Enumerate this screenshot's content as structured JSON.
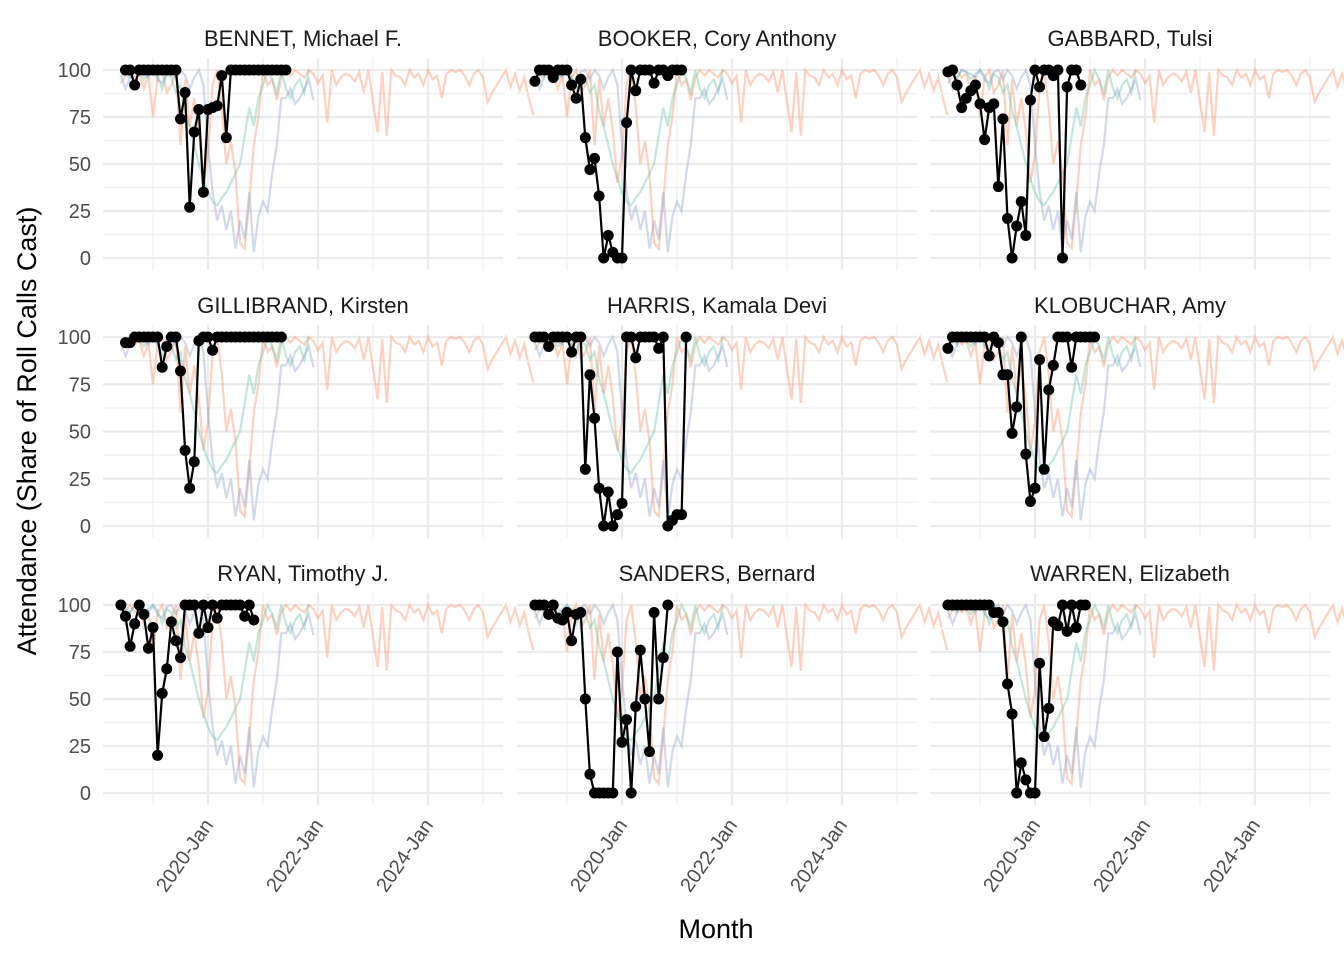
{
  "chart_data": {
    "type": "line",
    "layout": "facet-grid 3x3",
    "xlabel": "Month",
    "ylabel": "Attendance (Share of Roll Calls Cast)",
    "ylim": [
      0,
      100
    ],
    "yticks": [
      0,
      25,
      50,
      75,
      100
    ],
    "y_tick_labels": [
      "0",
      "25",
      "50",
      "75",
      "100"
    ],
    "x_range": [
      "2018-03",
      "2025-06"
    ],
    "x_tick_labels": [
      "2020-Jan",
      "2022-Jan",
      "2024-Jan"
    ],
    "x_tick_values": [
      "2020-01",
      "2022-01",
      "2024-01"
    ],
    "grid": true,
    "background_series": [
      {
        "name": "other-1",
        "color": "#FC8D62",
        "start": "2018-06",
        "values": [
          93,
          97,
          100,
          96,
          98,
          90,
          97,
          75,
          96,
          100,
          88,
          92,
          100,
          60,
          95,
          70,
          85,
          68,
          40,
          55,
          92,
          100,
          80,
          50,
          62,
          45,
          8,
          5,
          30,
          60,
          75,
          100,
          92,
          95,
          84,
          96,
          100,
          97,
          100,
          98,
          96,
          100,
          98,
          93,
          97,
          72,
          100,
          92,
          96,
          98,
          97,
          94,
          99,
          88,
          100,
          83,
          67,
          99,
          65,
          100,
          97,
          96,
          92,
          100,
          96,
          98,
          92,
          100,
          95,
          97,
          85,
          98,
          100,
          99,
          100,
          97,
          92,
          98,
          100,
          96,
          83,
          88,
          92,
          96,
          100,
          91,
          98,
          89,
          96,
          85,
          76
        ]
      },
      {
        "name": "other-2",
        "color": "#66C2A5",
        "start": "2018-06",
        "values": [
          97,
          98,
          96,
          100,
          99,
          95,
          98,
          100,
          97,
          90,
          98,
          96,
          88,
          92,
          78,
          70,
          60,
          50,
          42,
          35,
          30,
          28,
          32,
          35,
          40,
          45,
          50,
          65,
          80,
          70,
          85,
          92,
          100,
          95,
          88,
          100,
          90,
          85,
          92,
          95,
          88,
          100
        ]
      },
      {
        "name": "other-3",
        "color": "#8DA0CB",
        "start": "2018-06",
        "values": [
          97,
          90,
          96,
          100,
          99,
          98,
          96,
          100,
          95,
          93,
          99,
          100,
          95,
          100,
          97,
          90,
          96,
          100,
          92,
          60,
          35,
          20,
          28,
          15,
          25,
          5,
          20,
          10,
          35,
          3,
          22,
          30,
          25,
          45,
          60,
          85,
          85,
          90,
          82,
          85,
          90,
          95,
          84
        ]
      }
    ],
    "panels": [
      {
        "title": "BENNET, Michael F.",
        "start": "2018-07",
        "values": [
          100,
          100,
          92,
          100,
          100,
          100,
          100,
          100,
          100,
          100,
          100,
          100,
          74,
          88,
          27,
          67,
          79,
          35,
          79,
          80,
          81,
          97,
          64,
          100,
          100,
          100,
          100,
          100,
          100,
          100,
          100,
          100,
          100,
          100,
          100,
          100
        ]
      },
      {
        "title": "BOOKER, Cory Anthony",
        "start": "2018-06",
        "values": [
          94,
          100,
          100,
          100,
          96,
          100,
          100,
          100,
          92,
          85,
          95,
          64,
          47,
          53,
          33,
          0,
          12,
          3,
          0,
          0,
          72,
          100,
          89,
          100,
          100,
          100,
          93,
          100,
          100,
          97,
          100,
          100,
          100
        ]
      },
      {
        "title": "GABBARD, Tulsi",
        "start": "2018-06",
        "values": [
          99,
          100,
          92,
          80,
          85,
          89,
          92,
          82,
          63,
          80,
          82,
          38,
          74,
          21,
          0,
          17,
          30,
          12,
          84,
          100,
          91,
          100,
          100,
          97,
          100,
          0,
          91,
          100,
          100,
          92
        ]
      },
      {
        "title": "GILLIBRAND, Kirsten",
        "start": "2018-07",
        "values": [
          97,
          97,
          100,
          100,
          100,
          100,
          100,
          100,
          84,
          95,
          100,
          100,
          82,
          40,
          20,
          34,
          98,
          100,
          100,
          93,
          100,
          100,
          100,
          100,
          100,
          100,
          100,
          100,
          100,
          100,
          100,
          100,
          100,
          100,
          100
        ]
      },
      {
        "title": "HARRIS, Kamala Devi",
        "start": "2018-06",
        "values": [
          100,
          100,
          100,
          95,
          100,
          100,
          100,
          100,
          92,
          100,
          100,
          30,
          80,
          57,
          20,
          0,
          18,
          0,
          6,
          12,
          100,
          100,
          89,
          100,
          100,
          100,
          100,
          94,
          100,
          0,
          3,
          6,
          6,
          100
        ]
      },
      {
        "title": "KLOBUCHAR, Amy",
        "start": "2018-06",
        "values": [
          94,
          100,
          100,
          100,
          100,
          100,
          100,
          100,
          100,
          90,
          100,
          97,
          80,
          80,
          49,
          63,
          100,
          38,
          13,
          20,
          88,
          30,
          72,
          85,
          100,
          100,
          100,
          84,
          100,
          100,
          100,
          100,
          100
        ]
      },
      {
        "title": "RYAN, Timothy J.",
        "start": "2018-06",
        "values": [
          100,
          94,
          78,
          90,
          100,
          95,
          77,
          88,
          20,
          53,
          66,
          91,
          81,
          72,
          100,
          100,
          100,
          85,
          100,
          88,
          100,
          93,
          100,
          100,
          100,
          100,
          100,
          94,
          100,
          92
        ]
      },
      {
        "title": "SANDERS, Bernard",
        "start": "2018-06",
        "values": [
          100,
          100,
          100,
          95,
          100,
          93,
          92,
          96,
          81,
          95,
          96,
          50,
          10,
          0,
          0,
          0,
          0,
          0,
          75,
          27,
          39,
          0,
          46,
          76,
          50,
          22,
          96,
          50,
          72,
          100
        ]
      },
      {
        "title": "WARREN, Elizabeth",
        "start": "2018-06",
        "values": [
          100,
          100,
          100,
          100,
          100,
          100,
          100,
          100,
          100,
          100,
          96,
          96,
          91,
          58,
          42,
          0,
          16,
          7,
          0,
          0,
          69,
          30,
          45,
          91,
          89,
          100,
          86,
          100,
          88,
          100,
          100
        ]
      }
    ]
  }
}
